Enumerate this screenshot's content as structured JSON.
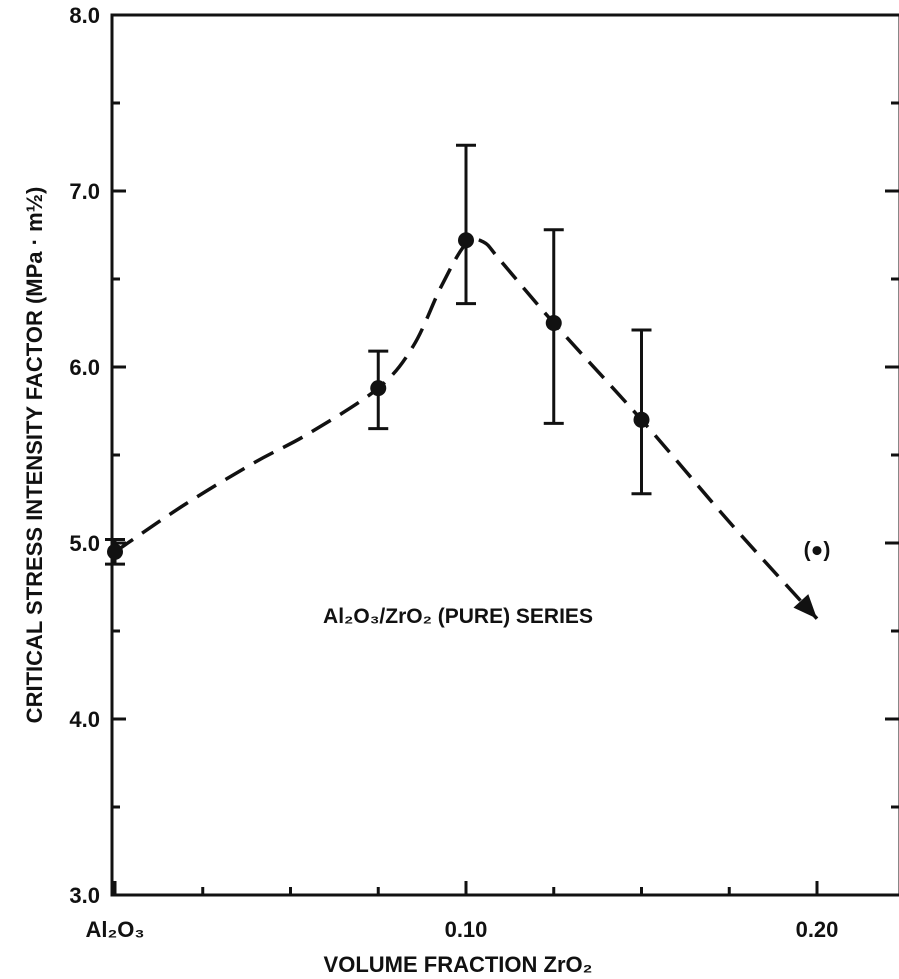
{
  "chart_data": {
    "type": "scatter",
    "title": "",
    "xlabel": "VOLUME FRACTION ZrO₂",
    "ylabel": "CRITICAL STRESS INTENSITY FACTOR (MPa · m½)",
    "xlim": [
      0.0,
      0.22
    ],
    "ylim": [
      3.0,
      8.0
    ],
    "grid": false,
    "y_ticks": [
      3.0,
      4.0,
      5.0,
      6.0,
      7.0,
      8.0
    ],
    "y_tick_labels": [
      "3.0",
      "4.0",
      "5.0",
      "6.0",
      "7.0",
      "8.0"
    ],
    "y_minor_ticks": [
      3.5,
      4.5,
      5.5,
      6.5,
      7.5
    ],
    "x_ticks": [
      0.0,
      0.1,
      0.2
    ],
    "x_tick_labels": [
      "Al₂O₃",
      "0.10",
      "0.20"
    ],
    "x_minor_ticks": [
      0.025,
      0.05,
      0.075,
      0.125,
      0.15,
      0.175
    ],
    "series": [
      {
        "points": [
          {
            "x": 0.0,
            "y": 4.95,
            "err_low": 4.88,
            "err_high": 5.02
          },
          {
            "x": 0.075,
            "y": 5.88,
            "err_low": 5.65,
            "err_high": 6.09
          },
          {
            "x": 0.1,
            "y": 6.72,
            "err_low": 6.36,
            "err_high": 7.26
          },
          {
            "x": 0.125,
            "y": 6.25,
            "err_low": 5.68,
            "err_high": 6.78
          },
          {
            "x": 0.15,
            "y": 5.7,
            "err_low": 5.28,
            "err_high": 6.21
          }
        ]
      }
    ],
    "outlier_point": {
      "x": 0.2,
      "y": 4.97,
      "label": "(●)"
    },
    "trend_curve": {
      "style": "dashed",
      "points": [
        [
          0.0,
          4.95
        ],
        [
          0.02,
          5.22
        ],
        [
          0.04,
          5.46
        ],
        [
          0.055,
          5.62
        ],
        [
          0.075,
          5.88
        ],
        [
          0.085,
          6.12
        ],
        [
          0.093,
          6.46
        ],
        [
          0.1,
          6.7
        ],
        [
          0.105,
          6.71
        ],
        [
          0.11,
          6.6
        ],
        [
          0.125,
          6.25
        ],
        [
          0.15,
          5.7
        ],
        [
          0.175,
          5.12
        ],
        [
          0.2,
          4.57
        ]
      ],
      "end_arrow": true
    },
    "annotation": "Al₂O₃/ZrO₂ (PURE) SERIES"
  }
}
